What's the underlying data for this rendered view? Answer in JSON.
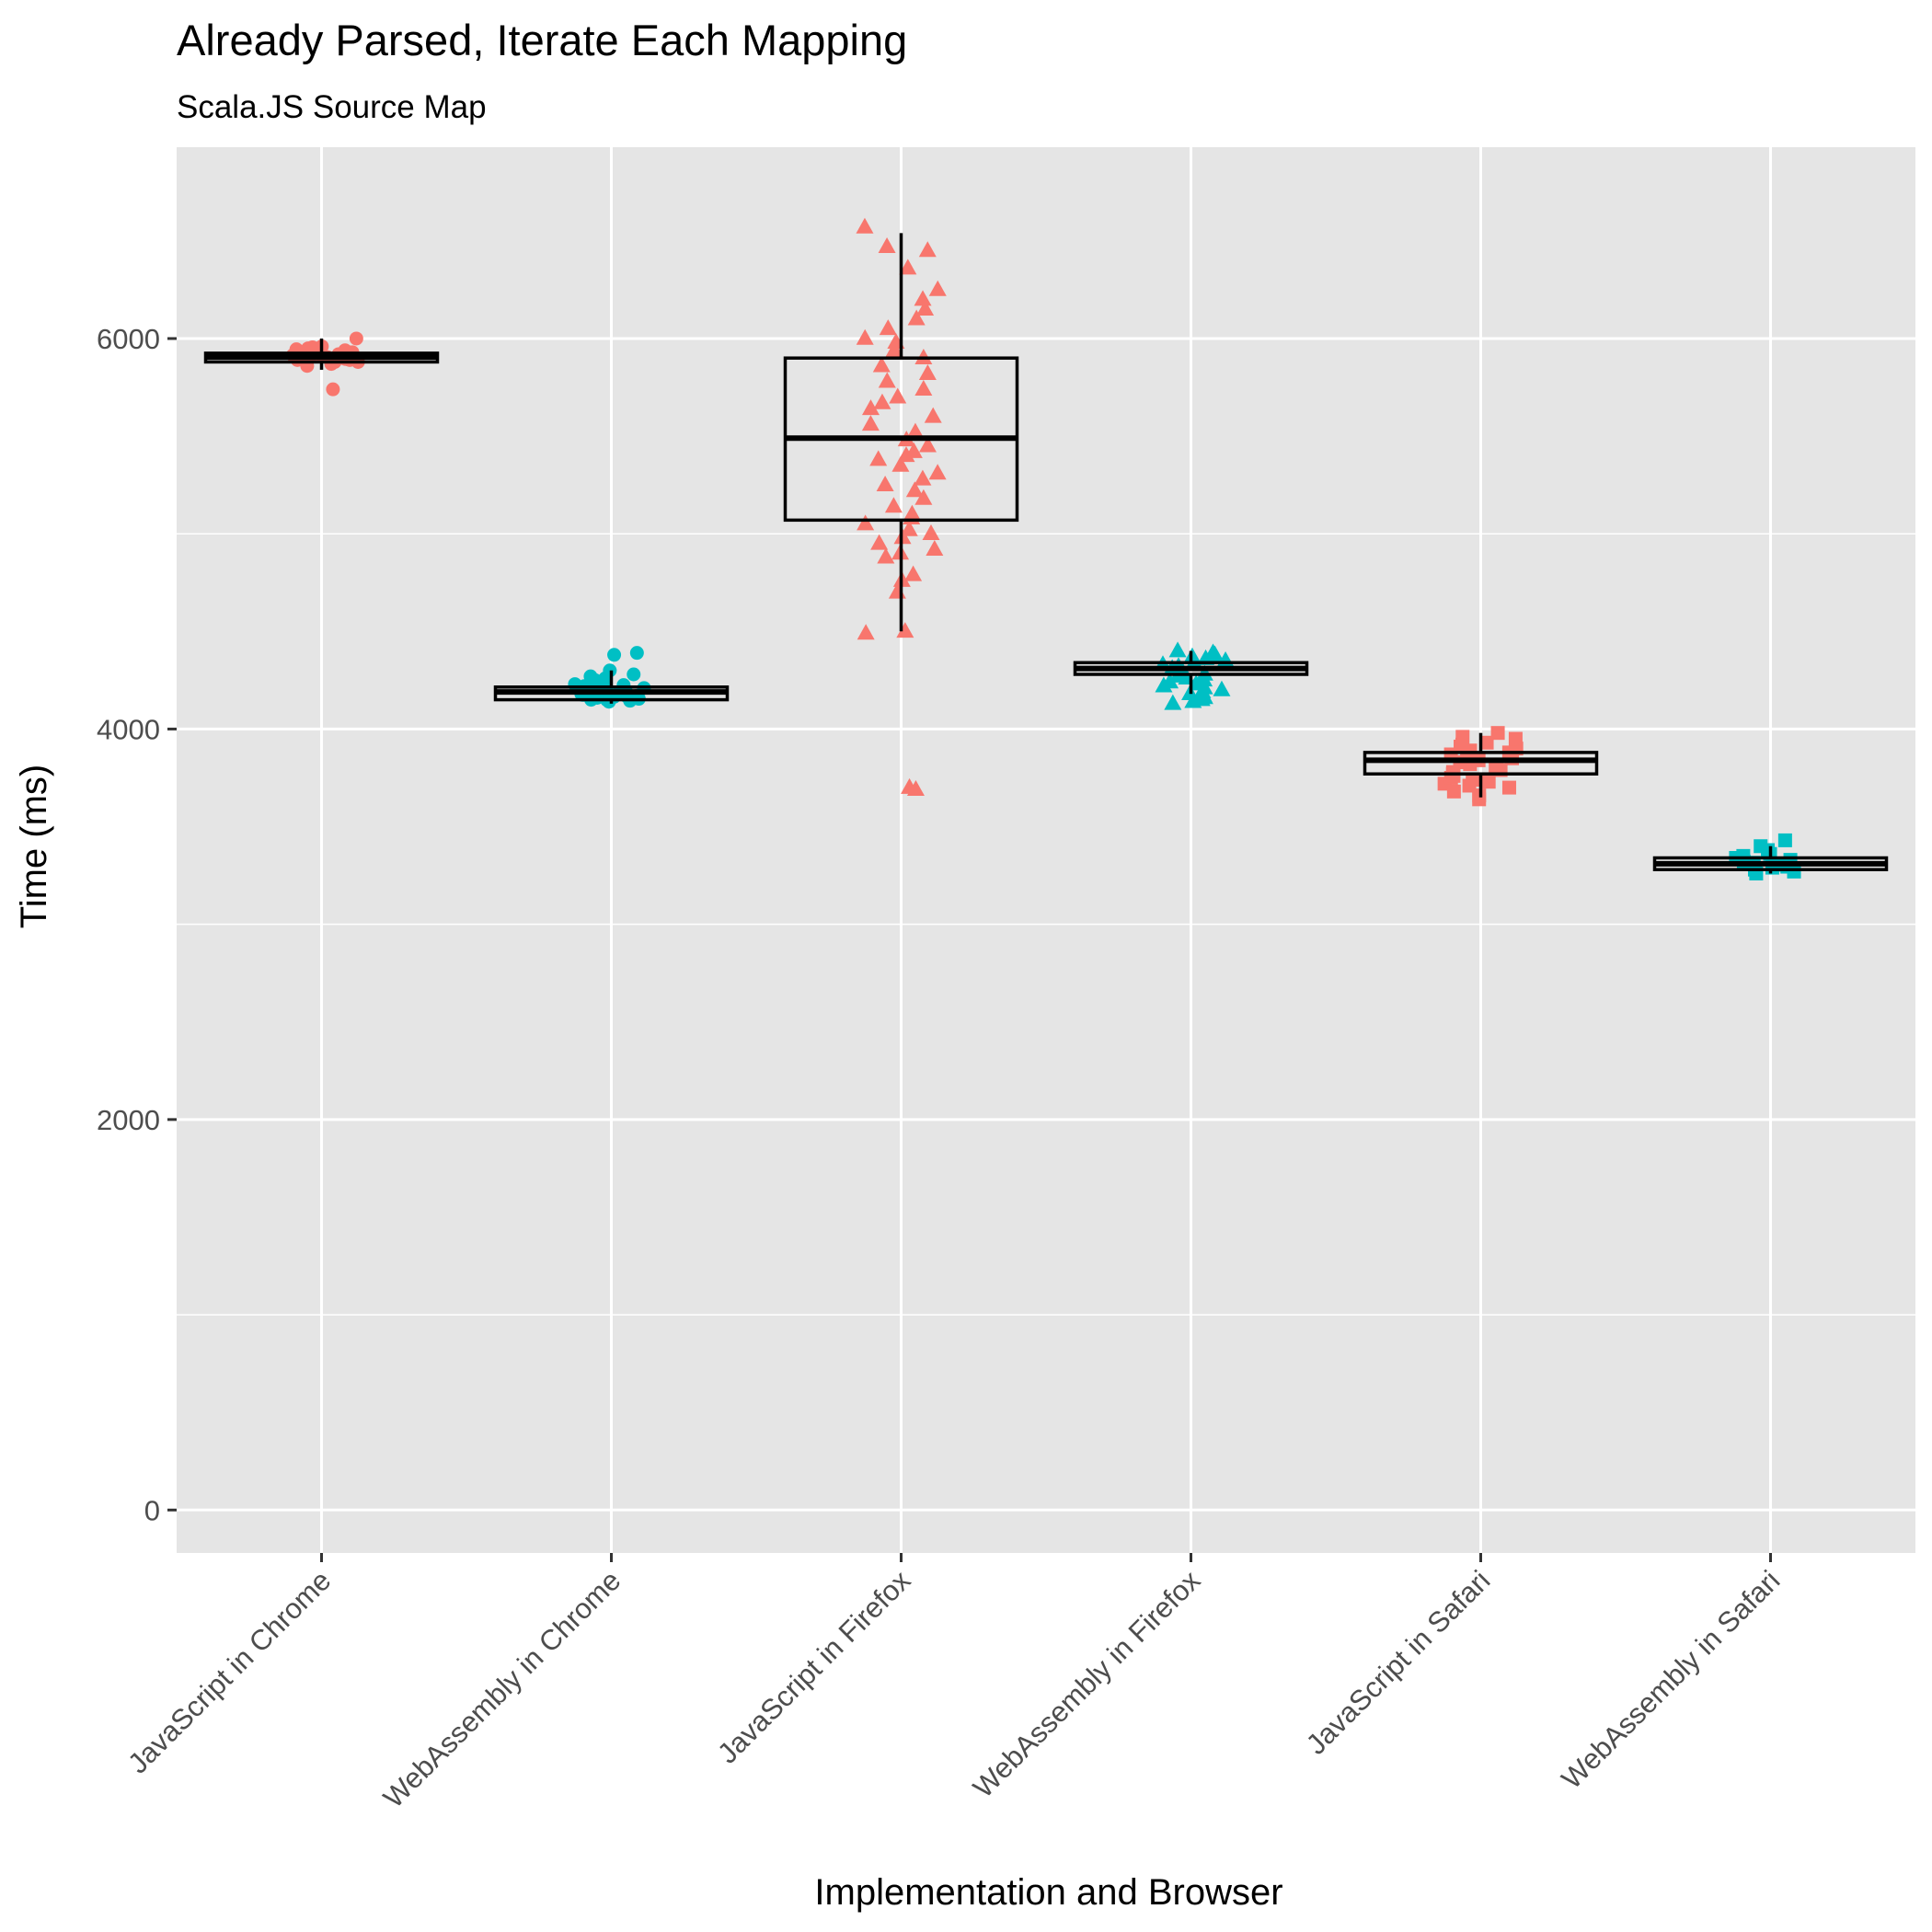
{
  "chart_data": {
    "type": "boxplot",
    "title": "Already Parsed, Iterate Each Mapping",
    "subtitle": "Scala.JS Source Map",
    "xlabel": "Implementation and Browser",
    "ylabel": "Time (ms)",
    "ylim": [
      -220,
      6980
    ],
    "yticks": [
      0,
      2000,
      4000,
      6000
    ],
    "ytick_labels": [
      "0",
      "2000",
      "4000",
      "6000"
    ],
    "grid": true,
    "legend": "none",
    "colors": {
      "javascript": "#F8766D",
      "webassembly": "#00BFC4",
      "panel": "#E5E5E5",
      "grid": "#FFFFFF",
      "box": "#000000"
    },
    "categories": [
      "JavaScript in Chrome",
      "WebAssembly in Chrome",
      "JavaScript in Firefox",
      "WebAssembly in Firefox",
      "JavaScript in Safari",
      "WebAssembly in Safari"
    ],
    "series": [
      {
        "category": "JavaScript in Chrome",
        "color": "#F8766D",
        "shape": "circle",
        "box": {
          "q1": 5880,
          "median": 5905,
          "q3": 5925,
          "whisker_low": 5840,
          "whisker_high": 6000
        },
        "points": [
          5740,
          5860,
          5870,
          5880,
          5880,
          5885,
          5890,
          5890,
          5895,
          5895,
          5900,
          5900,
          5900,
          5905,
          5905,
          5905,
          5910,
          5910,
          5910,
          5915,
          5915,
          5920,
          5920,
          5920,
          5925,
          5925,
          5930,
          5930,
          5935,
          5935,
          5940,
          5940,
          5945,
          5950,
          5955,
          5960,
          6000
        ]
      },
      {
        "category": "WebAssembly in Chrome",
        "color": "#00BFC4",
        "shape": "circle",
        "box": {
          "q1": 4150,
          "median": 4190,
          "q3": 4215,
          "whisker_low": 4130,
          "whisker_high": 4300
        },
        "points": [
          4140,
          4145,
          4150,
          4150,
          4155,
          4160,
          4160,
          4165,
          4170,
          4170,
          4175,
          4180,
          4180,
          4185,
          4190,
          4190,
          4195,
          4200,
          4200,
          4205,
          4210,
          4210,
          4215,
          4220,
          4220,
          4225,
          4230,
          4240,
          4250,
          4260,
          4270,
          4280,
          4300,
          4380,
          4390
        ]
      },
      {
        "category": "JavaScript in Firefox",
        "color": "#F8766D",
        "shape": "triangle",
        "box": {
          "q1": 5070,
          "median": 5490,
          "q3": 5900,
          "whisker_low": 4500,
          "whisker_high": 6540
        },
        "points": [
          3700,
          3690,
          4490,
          4500,
          4700,
          4760,
          4790,
          4880,
          4900,
          4920,
          4950,
          4980,
          5000,
          5020,
          5050,
          5080,
          5100,
          5140,
          5180,
          5220,
          5250,
          5280,
          5310,
          5350,
          5380,
          5400,
          5420,
          5450,
          5480,
          5520,
          5560,
          5600,
          5640,
          5670,
          5700,
          5740,
          5780,
          5820,
          5860,
          5900,
          5940,
          5980,
          6000,
          6050,
          6100,
          6150,
          6200,
          6250,
          6360,
          6450,
          6470,
          6570
        ]
      },
      {
        "category": "WebAssembly in Firefox",
        "color": "#00BFC4",
        "shape": "triangle",
        "box": {
          "q1": 4280,
          "median": 4310,
          "q3": 4340,
          "whisker_low": 4180,
          "whisker_high": 4400
        },
        "points": [
          4130,
          4140,
          4150,
          4160,
          4170,
          4180,
          4190,
          4200,
          4210,
          4220,
          4230,
          4240,
          4250,
          4260,
          4270,
          4280,
          4290,
          4300,
          4310,
          4320,
          4330,
          4340,
          4350,
          4360,
          4370,
          4380,
          4390,
          4400
        ]
      },
      {
        "category": "JavaScript in Safari",
        "color": "#F8766D",
        "shape": "square",
        "box": {
          "q1": 3770,
          "median": 3840,
          "q3": 3880,
          "whisker_low": 3650,
          "whisker_high": 3980
        },
        "points": [
          3640,
          3660,
          3680,
          3700,
          3710,
          3720,
          3730,
          3740,
          3750,
          3760,
          3770,
          3780,
          3790,
          3800,
          3810,
          3820,
          3830,
          3840,
          3850,
          3860,
          3870,
          3880,
          3890,
          3900,
          3910,
          3920,
          3930,
          3950,
          3960,
          3980
        ]
      },
      {
        "category": "WebAssembly in Safari",
        "color": "#00BFC4",
        "shape": "square",
        "box": {
          "q1": 3280,
          "median": 3310,
          "q3": 3340,
          "whisker_low": 3260,
          "whisker_high": 3400
        },
        "points": [
          3260,
          3270,
          3280,
          3290,
          3295,
          3300,
          3305,
          3310,
          3315,
          3320,
          3330,
          3340,
          3350,
          3360,
          3380,
          3400,
          3430
        ]
      }
    ]
  }
}
